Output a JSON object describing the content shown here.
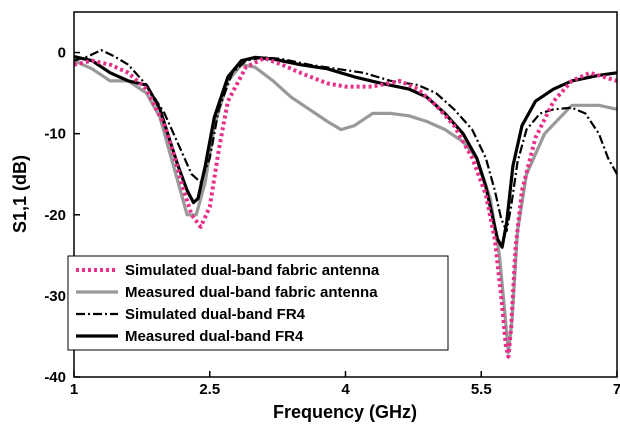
{
  "chart_data": {
    "type": "line",
    "xlabel": "Frequency (GHz)",
    "ylabel": "S1,1 (dB)",
    "xlim": [
      1,
      7
    ],
    "ylim": [
      -40,
      5
    ],
    "xticks": [
      1,
      2.5,
      4,
      5.5,
      7
    ],
    "xtick_labels": [
      "1",
      "2.5",
      "4",
      "5.5",
      "7"
    ],
    "yticks": [
      0,
      -10,
      -20,
      -30,
      -40
    ],
    "ytick_labels": [
      "0",
      "-10",
      "-20",
      "-30",
      "-40"
    ],
    "grid": false,
    "legend_position": "bottom-left",
    "series": [
      {
        "name": "Simulated dual-band fabric antenna",
        "color": "#e8308a",
        "dash": "dotted",
        "x": [
          1.0,
          1.2,
          1.4,
          1.6,
          1.8,
          2.0,
          2.1,
          2.2,
          2.3,
          2.4,
          2.5,
          2.6,
          2.7,
          2.9,
          3.1,
          3.3,
          3.5,
          3.8,
          4.0,
          4.3,
          4.6,
          4.8,
          5.0,
          5.2,
          5.4,
          5.55,
          5.65,
          5.72,
          5.77,
          5.8,
          5.83,
          5.88,
          5.95,
          6.1,
          6.3,
          6.5,
          6.7,
          7.0
        ],
        "y": [
          -1.5,
          -1.0,
          -1.5,
          -2.5,
          -4.5,
          -9.0,
          -12.5,
          -16.5,
          -20.0,
          -21.5,
          -19.0,
          -12.0,
          -6.0,
          -1.8,
          -0.7,
          -1.5,
          -2.5,
          -3.8,
          -4.2,
          -4.2,
          -3.5,
          -4.5,
          -6.5,
          -9.0,
          -13.0,
          -17.5,
          -23.0,
          -30.0,
          -36.0,
          -37.5,
          -34.0,
          -24.0,
          -17.0,
          -10.5,
          -6.0,
          -3.5,
          -2.5,
          -3.5
        ]
      },
      {
        "name": "Measured dual-band fabric antenna",
        "color": "#999999",
        "dash": "solid",
        "x": [
          1.0,
          1.2,
          1.4,
          1.6,
          1.8,
          1.95,
          2.05,
          2.15,
          2.25,
          2.35,
          2.45,
          2.55,
          2.7,
          2.85,
          3.0,
          3.2,
          3.4,
          3.6,
          3.8,
          3.95,
          4.1,
          4.3,
          4.5,
          4.7,
          4.9,
          5.1,
          5.3,
          5.45,
          5.6,
          5.7,
          5.76,
          5.8,
          5.84,
          5.9,
          6.0,
          6.2,
          6.5,
          6.8,
          7.0
        ],
        "y": [
          -1.0,
          -2.0,
          -3.5,
          -3.5,
          -5.0,
          -8.0,
          -12.0,
          -16.0,
          -20.0,
          -20.0,
          -16.0,
          -9.0,
          -3.5,
          -1.5,
          -1.8,
          -3.5,
          -5.5,
          -7.0,
          -8.5,
          -9.5,
          -9.0,
          -7.5,
          -7.5,
          -7.8,
          -8.5,
          -9.5,
          -11.0,
          -13.0,
          -18.0,
          -25.0,
          -32.0,
          -37.0,
          -33.0,
          -22.0,
          -15.0,
          -10.0,
          -6.5,
          -6.5,
          -7.0
        ]
      },
      {
        "name": "Simulated dual-band FR4",
        "color": "#000000",
        "dash": "dash-dot",
        "x": [
          1.0,
          1.15,
          1.3,
          1.45,
          1.6,
          1.8,
          2.0,
          2.1,
          2.2,
          2.3,
          2.4,
          2.5,
          2.6,
          2.75,
          2.9,
          3.1,
          3.3,
          3.6,
          3.9,
          4.2,
          4.5,
          4.8,
          5.0,
          5.2,
          5.4,
          5.55,
          5.65,
          5.72,
          5.78,
          5.83,
          5.9,
          6.0,
          6.15,
          6.3,
          6.5,
          6.65,
          6.8,
          6.9,
          7.0
        ],
        "y": [
          -1.0,
          -0.5,
          0.3,
          -0.5,
          -1.5,
          -4.0,
          -7.5,
          -10.0,
          -12.5,
          -15.0,
          -16.0,
          -13.0,
          -7.0,
          -2.5,
          -1.0,
          -0.6,
          -0.8,
          -1.5,
          -2.0,
          -2.5,
          -3.5,
          -4.0,
          -5.0,
          -7.0,
          -9.5,
          -13.0,
          -17.0,
          -20.5,
          -22.0,
          -19.0,
          -13.5,
          -9.5,
          -7.5,
          -7.0,
          -6.8,
          -7.5,
          -10.0,
          -13.0,
          -15.0
        ]
      },
      {
        "name": "Measured dual-band FR4",
        "color": "#000000",
        "dash": "solid",
        "x": [
          1.0,
          1.2,
          1.4,
          1.6,
          1.8,
          1.95,
          2.05,
          2.15,
          2.25,
          2.32,
          2.37,
          2.45,
          2.55,
          2.7,
          2.85,
          3.0,
          3.2,
          3.5,
          3.8,
          4.1,
          4.4,
          4.7,
          4.9,
          5.1,
          5.3,
          5.45,
          5.55,
          5.62,
          5.68,
          5.73,
          5.78,
          5.85,
          5.95,
          6.1,
          6.3,
          6.5,
          6.8,
          7.0
        ],
        "y": [
          -0.5,
          -1.0,
          -2.5,
          -3.5,
          -4.0,
          -7.0,
          -10.5,
          -14.0,
          -17.0,
          -18.5,
          -18.0,
          -14.0,
          -8.0,
          -3.0,
          -1.0,
          -0.6,
          -0.8,
          -1.5,
          -2.0,
          -3.0,
          -3.8,
          -4.5,
          -5.5,
          -7.5,
          -10.0,
          -13.0,
          -16.5,
          -20.0,
          -23.0,
          -24.0,
          -21.0,
          -14.0,
          -9.0,
          -6.0,
          -4.5,
          -3.5,
          -2.8,
          -2.5
        ]
      }
    ]
  }
}
